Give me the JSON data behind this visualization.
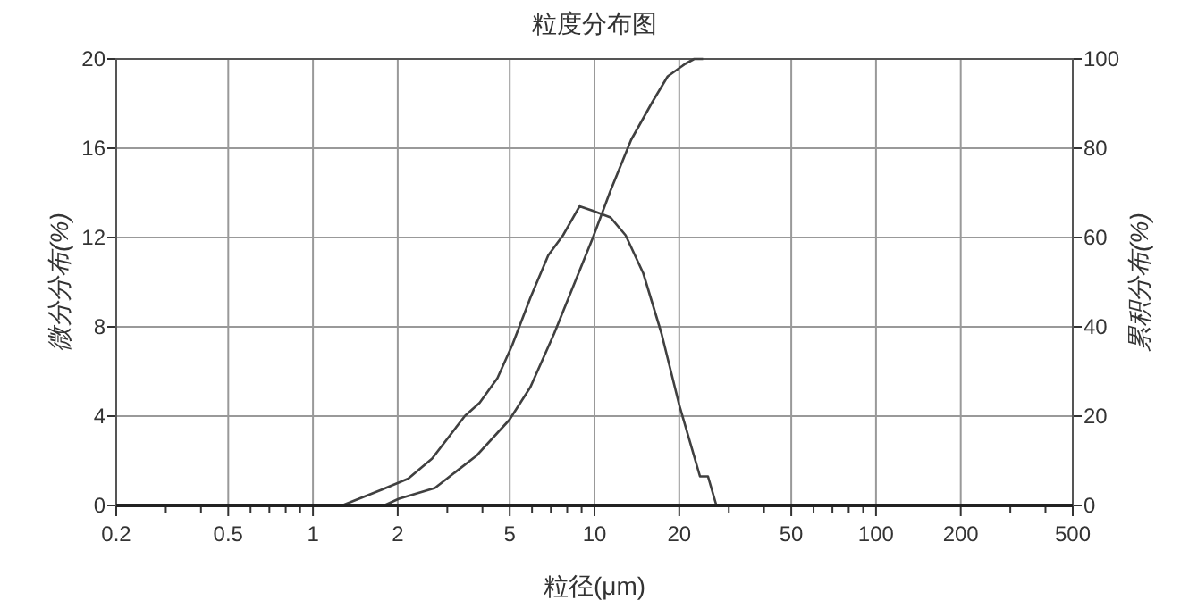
{
  "chart_data": {
    "type": "line",
    "title": "粒度分布图",
    "xlabel": "粒径(μm)",
    "ylabel": "微分分布(%)",
    "y2label": "累积分布(%)",
    "log": "x",
    "grid": true,
    "marker": "none",
    "line_style": "solid",
    "xlim": [
      0.2,
      500
    ],
    "xticks": [
      0.2,
      {
        "value": 0.3,
        "label": null
      },
      {
        "value": 0.4,
        "label": null
      },
      0.5,
      {
        "value": 0.6,
        "label": null
      },
      {
        "value": 0.7,
        "label": null
      },
      {
        "value": 0.8,
        "label": null
      },
      {
        "value": 0.9,
        "label": null
      },
      1,
      2,
      {
        "value": 3,
        "label": null
      },
      {
        "value": 4,
        "label": null
      },
      5,
      {
        "value": 6,
        "label": null
      },
      {
        "value": 7,
        "label": null
      },
      {
        "value": 8,
        "label": null
      },
      {
        "value": 9,
        "label": null
      },
      10,
      20,
      {
        "value": 30,
        "label": null
      },
      {
        "value": 40,
        "label": null
      },
      50,
      {
        "value": 60,
        "label": null
      },
      {
        "value": 70,
        "label": null
      },
      {
        "value": 80,
        "label": null
      },
      {
        "value": 90,
        "label": null
      },
      100,
      200,
      {
        "value": 300,
        "label": null
      },
      {
        "value": 400,
        "label": null
      },
      500
    ],
    "ylim": [
      0,
      20
    ],
    "yticks": [
      0,
      4,
      8,
      12,
      16,
      20
    ],
    "y2lim": [
      0,
      100
    ],
    "y2ticks": [
      0,
      20,
      40,
      60,
      80,
      100
    ],
    "series": [
      {
        "color": "#404040",
        "x": [
          0.2,
          1.27,
          1.75,
          2.18,
          2.65,
          3.46,
          3.91,
          4.52,
          5.11,
          5.92,
          6.85,
          7.73,
          8.85,
          9.86,
          11.4,
          12.9,
          14.9,
          17.3,
          20.0,
          23.7,
          25.3,
          27.1,
          500
        ],
        "values": [
          0,
          0,
          0.7,
          1.2,
          2.1,
          4.0,
          4.6,
          5.7,
          7.2,
          9.3,
          11.2,
          12.1,
          13.4,
          13.2,
          12.9,
          12.1,
          10.4,
          7.7,
          4.5,
          1.3,
          1.3,
          0,
          0
        ]
      },
      {
        "color": "#404040",
        "axis": "y2",
        "x": [
          0.2,
          1.79,
          2.02,
          2.71,
          3.82,
          4.99,
          5.92,
          7.19,
          9.86,
          11.4,
          13.5,
          16.1,
          18.2,
          21.0,
          22.6,
          24.3
        ],
        "values": [
          0,
          0,
          1.5,
          3.9,
          11.2,
          19.2,
          26.5,
          38.5,
          59.9,
          70.5,
          81.9,
          90.5,
          96.1,
          98.9,
          100,
          100
        ]
      }
    ]
  }
}
